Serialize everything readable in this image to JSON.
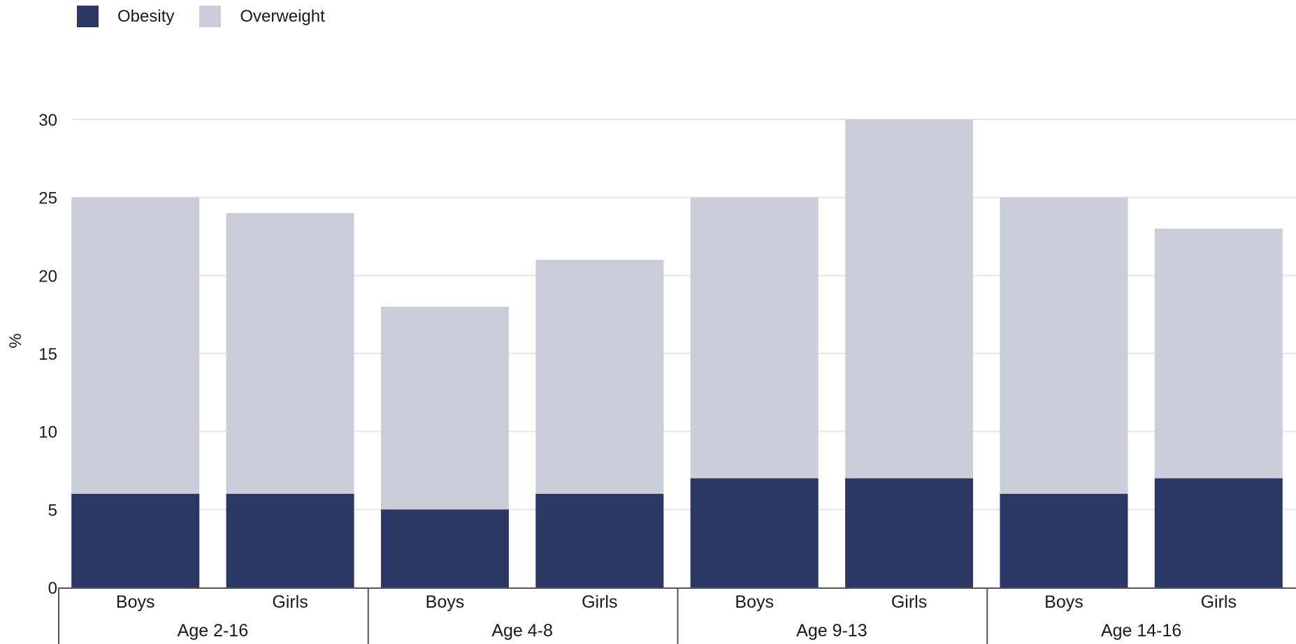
{
  "legend": [
    {
      "label": "Obesity",
      "color": "#2b3764"
    },
    {
      "label": "Overweight",
      "color": "#cbcdd9"
    }
  ],
  "chart_data": {
    "type": "bar",
    "stacked": true,
    "ylabel": "%",
    "ylim": [
      0,
      30
    ],
    "yticks": [
      0,
      5,
      10,
      15,
      20,
      25,
      30
    ],
    "grid": true,
    "legend_position": "top-left",
    "groups": [
      {
        "label": "Age 2-16",
        "categories": [
          "Boys",
          "Girls"
        ]
      },
      {
        "label": "Age 4-8",
        "categories": [
          "Boys",
          "Girls"
        ]
      },
      {
        "label": "Age 9-13",
        "categories": [
          "Boys",
          "Girls"
        ]
      },
      {
        "label": "Age 14-16",
        "categories": [
          "Boys",
          "Girls"
        ]
      }
    ],
    "categories": [
      "Boys",
      "Girls",
      "Boys",
      "Girls",
      "Boys",
      "Girls",
      "Boys",
      "Girls"
    ],
    "series": [
      {
        "name": "Obesity",
        "color": "#2b3764",
        "values": [
          6,
          6,
          5,
          6,
          7,
          7,
          6,
          7
        ]
      },
      {
        "name": "Overweight",
        "color": "#cbcdd9",
        "values": [
          19,
          18,
          13,
          15,
          18,
          23,
          19,
          16
        ]
      }
    ]
  }
}
